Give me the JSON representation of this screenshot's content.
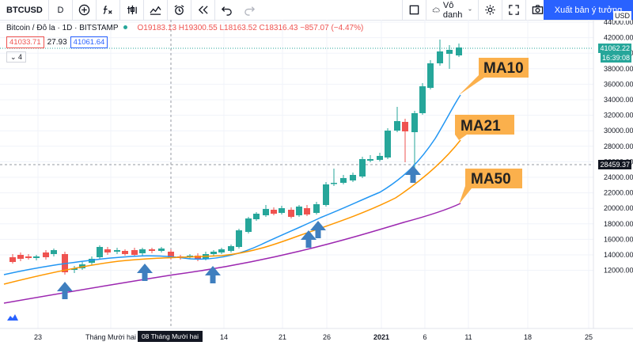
{
  "toolbar": {
    "symbol": "BTCUSD",
    "interval": "D",
    "icons": [
      "add-symbol-icon",
      "compare-icon",
      "indicators-icon",
      "chart-type-icon",
      "templates-icon",
      "alert-icon",
      "replay-icon",
      "undo-icon",
      "redo-icon"
    ],
    "layout_icon": "layout-icon",
    "unnamed_label": "Vô danh",
    "publish_label": "Xuất bản ý tưởng"
  },
  "legend": {
    "title": "Bitcoin / Đô la · 1D · BITSTAMP",
    "ohlc": "O19183.13 H19300.55 L18163.52 C18316.43 −857.07 (−4.47%)",
    "sell_price": "41033.71",
    "spread": "27.93",
    "buy_price": "41061.64",
    "collapse": "4"
  },
  "price_axis": {
    "currency": "USD",
    "ticks": [
      "44000.00",
      "42000.00",
      "40000.00",
      "38000.00",
      "36000.00",
      "34000.00",
      "32000.00",
      "30000.00",
      "28000.00",
      "26000.00",
      "24000.00",
      "22000.00",
      "20000.00",
      "18000.00",
      "16000.00",
      "14000.00",
      "12000.00"
    ],
    "last_price": "41062.22",
    "countdown": "16:39:08",
    "cursor_price": "28459.37"
  },
  "time_axis": {
    "labels": [
      "23",
      "Tháng Mười hai",
      "14",
      "21",
      "26",
      "2021",
      "6",
      "11",
      "18",
      "25"
    ],
    "cursor_date": "08 Tháng Mười hai '20"
  },
  "annotations": {
    "ma10": "MA10",
    "ma21": "MA21",
    "ma50": "MA50"
  },
  "colors": {
    "up": "#26a69a",
    "down": "#ef5350",
    "ma10": "#2196f3",
    "ma21": "#ff9800",
    "ma50": "#9c27b0",
    "callout": "#fbb04c",
    "arrow": "#3f7fbf"
  }
}
